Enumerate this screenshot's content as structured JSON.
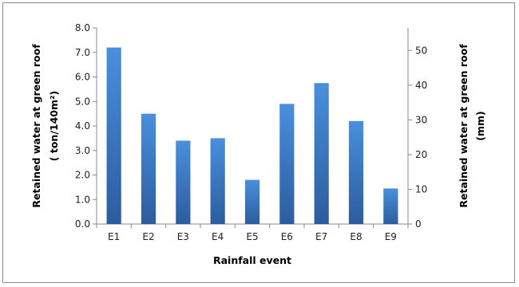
{
  "chart_data": {
    "type": "bar",
    "categories": [
      "E1",
      "E2",
      "E3",
      "E4",
      "E5",
      "E6",
      "E7",
      "E8",
      "E9"
    ],
    "series": [
      {
        "values": [
          7.2,
          4.5,
          3.4,
          3.5,
          1.8,
          4.9,
          5.75,
          4.2,
          1.45
        ]
      }
    ],
    "xlabel": "Rainfall event",
    "ylabel": [
      "Retained water at green roof",
      "( ton/140m²)"
    ],
    "y2label": [
      "Retained water at green roof",
      "(mm)"
    ],
    "ylim": [
      0,
      8
    ],
    "yticks": [
      "0.0",
      "1.0",
      "2.0",
      "3.0",
      "4.0",
      "5.0",
      "6.0",
      "7.0",
      "8.0"
    ],
    "y2lim": [
      0,
      56.5
    ],
    "y2ticks": [
      "0",
      "10",
      "20",
      "30",
      "40",
      "50"
    ],
    "grid": false,
    "legend": "none",
    "colors": {
      "bar_top": "#4a8fdc",
      "bar_bottom": "#2c5c9e",
      "axis": "#8a8a8a"
    }
  }
}
